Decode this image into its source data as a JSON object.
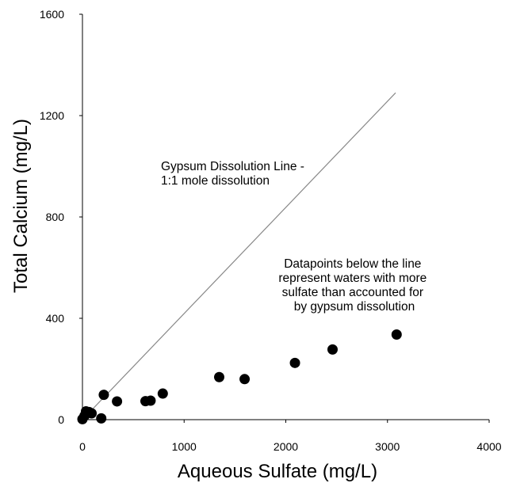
{
  "chart_data": {
    "type": "scatter",
    "xlabel": "Aqueous Sulfate (mg/L)",
    "ylabel": "Total Calcium (mg/L)",
    "xlim": [
      0,
      4000
    ],
    "ylim": [
      0,
      1600
    ],
    "x_ticks": [
      0,
      1000,
      2000,
      3000,
      4000
    ],
    "y_ticks": [
      0,
      400,
      800,
      1200,
      1600
    ],
    "grid": false,
    "legend": "none",
    "series": [
      {
        "points": [
          {
            "x": 0,
            "y": 2
          },
          {
            "x": 20,
            "y": 15
          },
          {
            "x": 35,
            "y": 33
          },
          {
            "x": 65,
            "y": 30
          },
          {
            "x": 90,
            "y": 25
          },
          {
            "x": 185,
            "y": 5
          },
          {
            "x": 210,
            "y": 98
          },
          {
            "x": 340,
            "y": 72
          },
          {
            "x": 620,
            "y": 73
          },
          {
            "x": 670,
            "y": 75
          },
          {
            "x": 790,
            "y": 103
          },
          {
            "x": 1345,
            "y": 168
          },
          {
            "x": 1595,
            "y": 160
          },
          {
            "x": 2090,
            "y": 224
          },
          {
            "x": 2460,
            "y": 277
          },
          {
            "x": 3090,
            "y": 336
          }
        ]
      }
    ],
    "reference_line": {
      "x": [
        0,
        3080
      ],
      "y": [
        0,
        1290
      ]
    },
    "annotations": [
      {
        "key": "gypsum",
        "lines": [
          "Gypsum Dissolution Line -",
          "1:1 mole dissolution"
        ]
      },
      {
        "key": "below",
        "lines": [
          "Datapoints below the line",
          "represent waters with more",
          "sulfate than accounted for",
          "by gypsum dissolution"
        ]
      }
    ],
    "colors": {
      "points": "#000000",
      "line": "#888888",
      "axes": "#000000"
    }
  }
}
